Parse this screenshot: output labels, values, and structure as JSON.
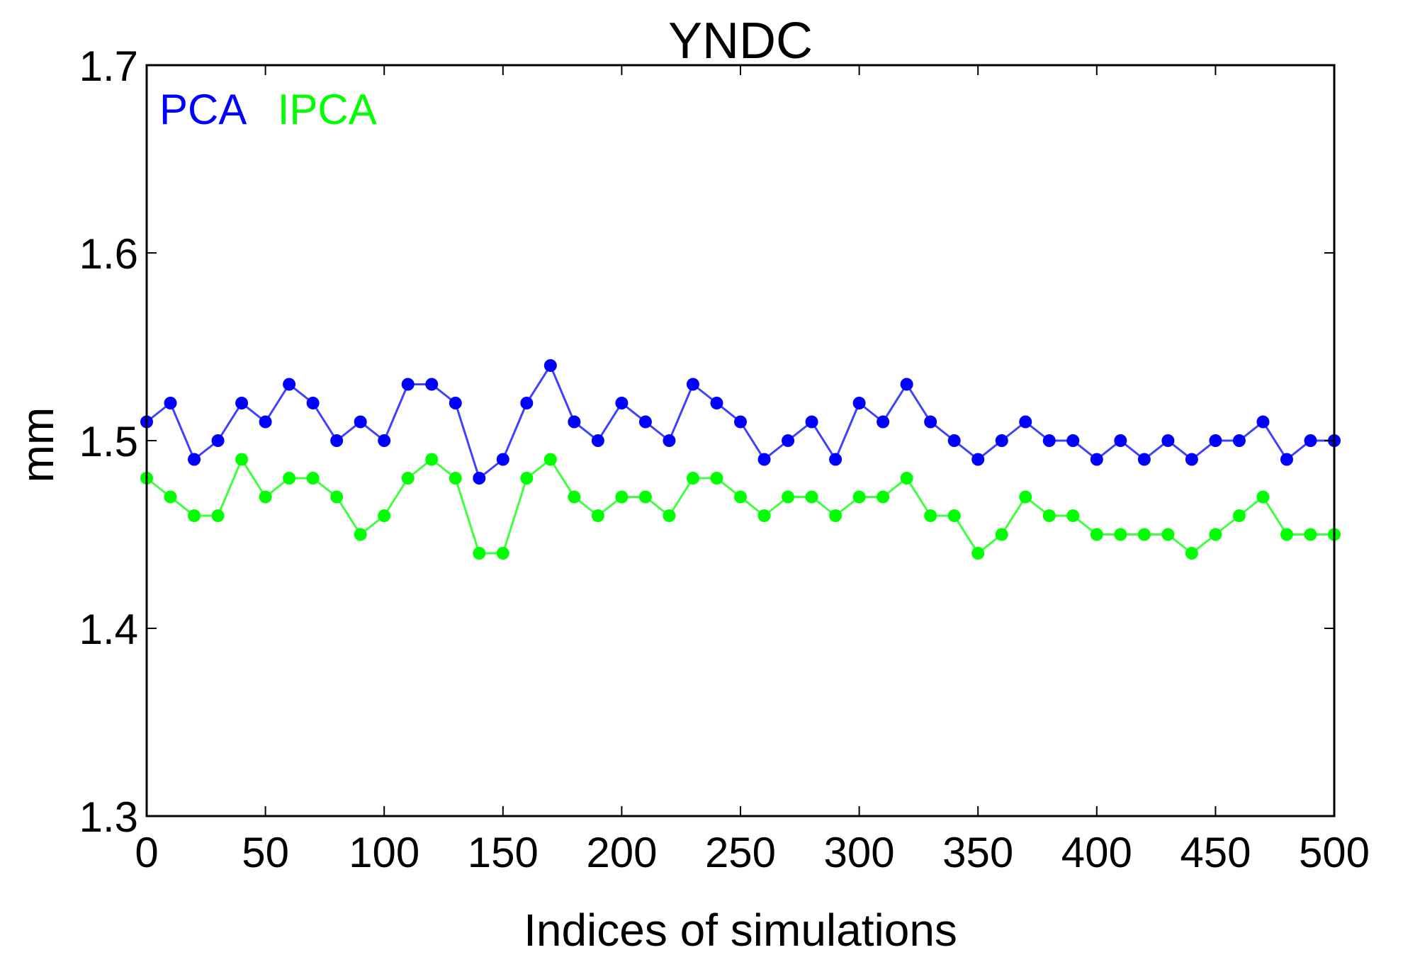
{
  "chart_data": {
    "type": "line",
    "title": "YNDC",
    "xlabel": "Indices of simulations",
    "ylabel": "mm",
    "xlim": [
      0,
      500
    ],
    "ylim": [
      1.3,
      1.7
    ],
    "xticks": [
      0,
      50,
      100,
      150,
      200,
      250,
      300,
      350,
      400,
      450,
      500
    ],
    "yticks": [
      1.3,
      1.4,
      1.5,
      1.6,
      1.7
    ],
    "ytick_labels": [
      "1.3",
      "1.4",
      "1.5",
      "1.6",
      "1.7"
    ],
    "grid": false,
    "legend": "top-left, inline colored text",
    "series": [
      {
        "name": "PCA",
        "color": "#0000ff",
        "marker": "circle",
        "x": [
          0,
          10,
          20,
          30,
          40,
          50,
          60,
          70,
          80,
          90,
          100,
          110,
          120,
          130,
          140,
          150,
          160,
          170,
          180,
          190,
          200,
          210,
          220,
          230,
          240,
          250,
          260,
          270,
          280,
          290,
          300,
          310,
          320,
          330,
          340,
          350,
          360,
          370,
          380,
          390,
          400,
          410,
          420,
          430,
          440,
          450,
          460,
          470,
          480,
          490,
          500
        ],
        "y": [
          1.51,
          1.52,
          1.49,
          1.5,
          1.52,
          1.51,
          1.53,
          1.52,
          1.5,
          1.51,
          1.5,
          1.53,
          1.53,
          1.52,
          1.48,
          1.49,
          1.52,
          1.54,
          1.51,
          1.5,
          1.52,
          1.51,
          1.5,
          1.53,
          1.52,
          1.51,
          1.49,
          1.5,
          1.51,
          1.49,
          1.52,
          1.51,
          1.53,
          1.51,
          1.5,
          1.49,
          1.5,
          1.51,
          1.5,
          1.5,
          1.49,
          1.5,
          1.49,
          1.5,
          1.49,
          1.5,
          1.5,
          1.51,
          1.49,
          1.5,
          1.5
        ]
      },
      {
        "name": "IPCA",
        "color": "#00ff00",
        "marker": "circle",
        "x": [
          0,
          10,
          20,
          30,
          40,
          50,
          60,
          70,
          80,
          90,
          100,
          110,
          120,
          130,
          140,
          150,
          160,
          170,
          180,
          190,
          200,
          210,
          220,
          230,
          240,
          250,
          260,
          270,
          280,
          290,
          300,
          310,
          320,
          330,
          340,
          350,
          360,
          370,
          380,
          390,
          400,
          410,
          420,
          430,
          440,
          450,
          460,
          470,
          480,
          490,
          500
        ],
        "y": [
          1.48,
          1.47,
          1.46,
          1.46,
          1.49,
          1.47,
          1.48,
          1.48,
          1.47,
          1.45,
          1.46,
          1.48,
          1.49,
          1.48,
          1.44,
          1.44,
          1.48,
          1.49,
          1.47,
          1.46,
          1.47,
          1.47,
          1.46,
          1.48,
          1.48,
          1.47,
          1.46,
          1.47,
          1.47,
          1.46,
          1.47,
          1.47,
          1.48,
          1.46,
          1.46,
          1.44,
          1.45,
          1.47,
          1.46,
          1.46,
          1.45,
          1.45,
          1.45,
          1.45,
          1.44,
          1.45,
          1.46,
          1.47,
          1.45,
          1.45,
          1.45
        ]
      }
    ]
  }
}
